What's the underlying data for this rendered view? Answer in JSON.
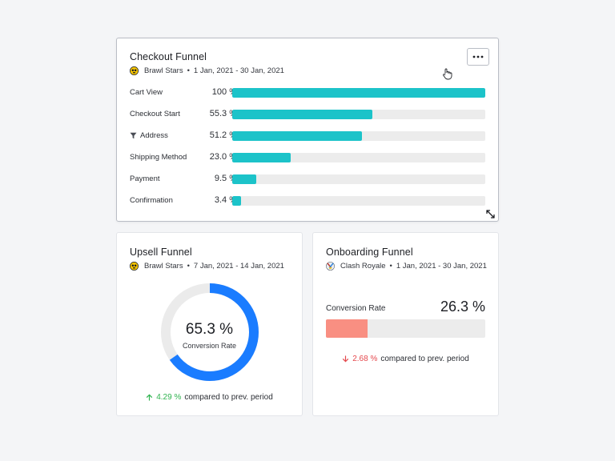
{
  "colors": {
    "bar_fill": "#1cc3c9",
    "bar_track": "#ececec",
    "donut_fill": "#1a7cff",
    "donut_track": "#ebebeb",
    "conversion_fill": "#f98f82",
    "positive": "#2fb34f",
    "negative": "#e5484d"
  },
  "checkout": {
    "title": "Checkout Funnel",
    "game": "Brawl Stars",
    "game_icon": "brawl-stars-skull-icon",
    "separator": "•",
    "date_range": "1 Jan, 2021 - 30 Jan, 2021",
    "more_icon": "more-horizontal-icon",
    "steps": [
      {
        "label": "Cart View",
        "percent_text": "100 %",
        "value": 100,
        "filter": false
      },
      {
        "label": "Checkout Start",
        "percent_text": "55.3 %",
        "value": 55.3,
        "filter": false
      },
      {
        "label": "Address",
        "percent_text": "51.2 %",
        "value": 51.2,
        "filter": true
      },
      {
        "label": "Shipping Method",
        "percent_text": "23.0 %",
        "value": 23.0,
        "filter": false
      },
      {
        "label": "Payment",
        "percent_text": "9.5 %",
        "value": 9.5,
        "filter": false
      },
      {
        "label": "Confirmation",
        "percent_text": "3.4 %",
        "value": 3.4,
        "filter": false
      }
    ]
  },
  "upsell": {
    "title": "Upsell Funnel",
    "game": "Brawl Stars",
    "game_icon": "brawl-stars-skull-icon",
    "separator": "•",
    "date_range": "7 Jan, 2021 - 14 Jan, 2021",
    "value_text": "65.3 %",
    "value": 65.3,
    "value_label": "Conversion Rate",
    "delta_text": "4.29 %",
    "delta_direction": "up",
    "compare_text": "compared to prev. period"
  },
  "onboarding": {
    "title": "Onboarding Funnel",
    "game": "Clash Royale",
    "game_icon": "clash-royale-icon",
    "separator": "•",
    "date_range": "1 Jan, 2021 - 30 Jan, 2021",
    "conversion_label": "Conversion Rate",
    "value_text": "26.3 %",
    "value": 26.3,
    "delta_text": "2.68 %",
    "delta_direction": "down",
    "compare_text": "compared to prev. period"
  }
}
